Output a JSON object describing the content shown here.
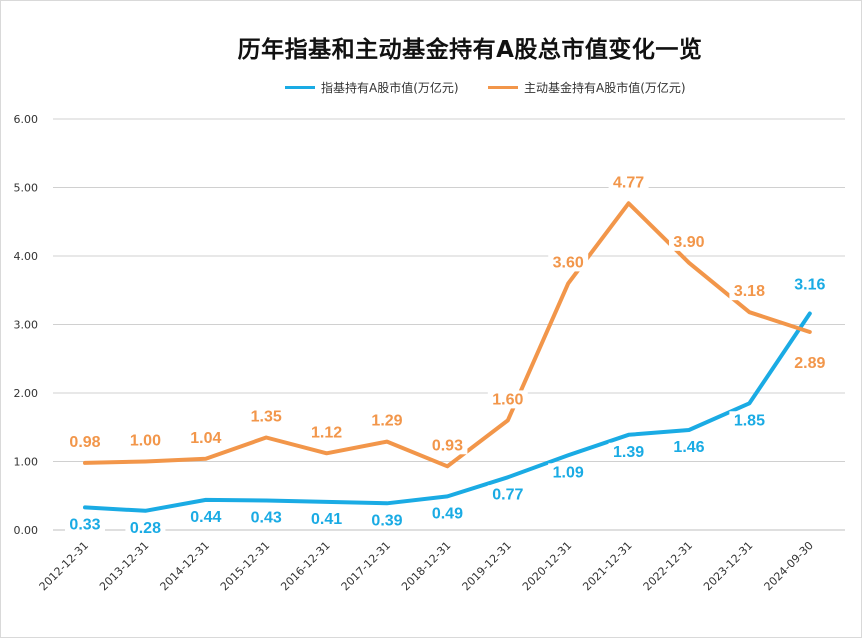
{
  "chart_data": {
    "type": "line",
    "title": "历年指基和主动基金持有A股总市值变化一览",
    "categories": [
      "2012-12-31",
      "2013-12-31",
      "2014-12-31",
      "2015-12-31",
      "2016-12-31",
      "2017-12-31",
      "2018-12-31",
      "2019-12-31",
      "2020-12-31",
      "2021-12-31",
      "2022-12-31",
      "2023-12-31",
      "2024-09-30"
    ],
    "series": [
      {
        "name": "指基持有A股市值(万亿元)",
        "color": "#1aabe4",
        "values": [
          0.33,
          0.28,
          0.44,
          0.43,
          0.41,
          0.39,
          0.49,
          0.77,
          1.09,
          1.39,
          1.46,
          1.85,
          3.16
        ]
      },
      {
        "name": "主动基金持有A股市值(万亿元)",
        "color": "#f2964a",
        "values": [
          0.98,
          1.0,
          1.04,
          1.35,
          1.12,
          1.29,
          0.93,
          1.6,
          3.6,
          4.77,
          3.9,
          3.18,
          2.89
        ]
      }
    ],
    "yticks": [
      "0.00",
      "1.00",
      "2.00",
      "3.00",
      "4.00",
      "5.00",
      "6.00"
    ],
    "ylim": [
      0,
      6
    ],
    "xlabel": "",
    "ylabel": "",
    "grid": true,
    "legend_position": "top"
  }
}
